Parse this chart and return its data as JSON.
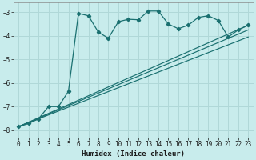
{
  "xlabel": "Humidex (Indice chaleur)",
  "background_color": "#c8ecec",
  "line_color": "#1a7070",
  "grid_color": "#b0d8d8",
  "xlim": [
    -0.5,
    23.5
  ],
  "ylim": [
    -8.3,
    -2.6
  ],
  "yticks": [
    -8,
    -7,
    -6,
    -5,
    -4,
    -3
  ],
  "xticks": [
    0,
    1,
    2,
    3,
    4,
    5,
    6,
    7,
    8,
    9,
    10,
    11,
    12,
    13,
    14,
    15,
    16,
    17,
    18,
    19,
    20,
    21,
    22,
    23
  ],
  "series1_x": [
    0,
    1,
    2,
    3,
    4,
    5,
    6,
    7,
    8,
    9,
    10,
    11,
    12,
    13,
    14,
    15,
    16,
    17,
    18,
    19,
    20,
    21,
    22,
    23
  ],
  "series1_y": [
    -7.85,
    -7.72,
    -7.52,
    -7.0,
    -7.0,
    -6.35,
    -3.05,
    -3.15,
    -3.85,
    -4.1,
    -3.4,
    -3.3,
    -3.32,
    -2.95,
    -2.95,
    -3.5,
    -3.7,
    -3.55,
    -3.22,
    -3.15,
    -3.35,
    -4.05,
    -3.75,
    -3.55
  ],
  "series2_x": [
    0,
    23
  ],
  "series2_y": [
    -7.85,
    -3.55
  ],
  "series3_x": [
    0,
    23
  ],
  "series3_y": [
    -7.85,
    -3.75
  ],
  "series4_x": [
    0,
    23
  ],
  "series4_y": [
    -7.85,
    -4.05
  ]
}
